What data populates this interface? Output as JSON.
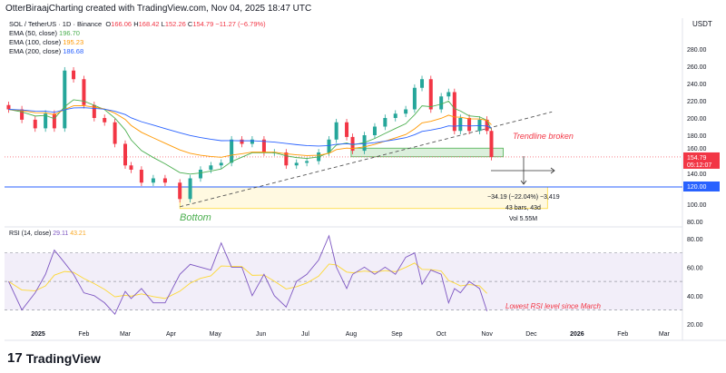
{
  "header": "OtterBiraajCharting created with TradingView.com, Nov 04, 2025 18:47 UTC",
  "symbol": {
    "title": "SOL / TetherUS · 1D · Binance",
    "o_label": "O",
    "open": "166.06",
    "h_label": "H",
    "high": "168.42",
    "l_label": "L",
    "low": "152.26",
    "c_label": "C",
    "close": "154.79",
    "change": "−11.27 (−6.79%)"
  },
  "indicators": [
    {
      "label": "EMA (50, close)",
      "value": "196.70",
      "color": "#4caf50",
      "period": 50
    },
    {
      "label": "EMA (100, close)",
      "value": "195.23",
      "color": "#ff9800",
      "period": 100
    },
    {
      "label": "EMA (200, close)",
      "value": "186.68",
      "color": "#2962ff",
      "period": 200
    }
  ],
  "rsi": {
    "label": "RSI (14, close)",
    "value": "29.11",
    "ma_value": "43.21",
    "color": "#7e57c2",
    "ma_color": "#fdd835"
  },
  "currency": "USDT",
  "price_badge": {
    "price": "154.79",
    "countdown": "05:12:07"
  },
  "level_badge": "120.00",
  "annotations": {
    "trendline": "Trendline broken",
    "bottom": "Bottom",
    "rsi_note": "Lowest RSI level since March",
    "measure_line1": "−34.19 (−22.04%) −3,419",
    "measure_line2": "43 bars, 43d",
    "measure_line3": "Vol 5.55M"
  },
  "brand": "TradingView",
  "colors": {
    "up": "#26a69a",
    "down": "#f23645"
  },
  "chart_data": {
    "type": "candlestick",
    "price_ticks": [
      "280.00",
      "260.00",
      "240.00",
      "220.00",
      "200.00",
      "180.00",
      "160.00",
      "140.00",
      "100.00",
      "80.00"
    ],
    "price_tick_values": [
      280,
      260,
      240,
      220,
      200,
      180,
      160,
      140,
      100,
      80
    ],
    "ylim": [
      80,
      290
    ],
    "rsi_ticks": [
      "80.00",
      "60.00",
      "40.00",
      "20.00"
    ],
    "rsi_tick_values": [
      80,
      60,
      40,
      20
    ],
    "rsi_levels": [
      70,
      50,
      30
    ],
    "x_ticks": [
      [
        "2025",
        "2025-01-01"
      ],
      [
        "Feb",
        "2025-02-01"
      ],
      [
        "Mar",
        "2025-03-01"
      ],
      [
        "Apr",
        "2025-04-01"
      ],
      [
        "May",
        "2025-05-01"
      ],
      [
        "Jun",
        "2025-06-01"
      ],
      [
        "Jul",
        "2025-07-01"
      ],
      [
        "Aug",
        "2025-08-01"
      ],
      [
        "Sep",
        "2025-09-01"
      ],
      [
        "Oct",
        "2025-10-01"
      ],
      [
        "Nov",
        "2025-11-01"
      ],
      [
        "Dec",
        "2025-12-01"
      ],
      [
        "2026",
        "2026-01-01"
      ],
      [
        "Feb",
        "2026-02-01"
      ],
      [
        "Mar",
        "2026-03-01"
      ]
    ],
    "closes": [
      [
        "2024-12-12",
        210
      ],
      [
        "2024-12-21",
        198
      ],
      [
        "2024-12-30",
        188
      ],
      [
        "2025-01-06",
        205
      ],
      [
        "2025-01-12",
        188
      ],
      [
        "2025-01-19",
        255
      ],
      [
        "2025-01-25",
        245
      ],
      [
        "2025-02-01",
        215
      ],
      [
        "2025-02-08",
        200
      ],
      [
        "2025-02-15",
        195
      ],
      [
        "2025-02-22",
        170
      ],
      [
        "2025-03-01",
        145
      ],
      [
        "2025-03-05",
        140
      ],
      [
        "2025-03-12",
        125
      ],
      [
        "2025-03-20",
        130
      ],
      [
        "2025-03-28",
        125
      ],
      [
        "2025-04-07",
        106
      ],
      [
        "2025-04-14",
        130
      ],
      [
        "2025-04-21",
        140
      ],
      [
        "2025-04-28",
        145
      ],
      [
        "2025-05-05",
        148
      ],
      [
        "2025-05-12",
        175
      ],
      [
        "2025-05-19",
        170
      ],
      [
        "2025-05-26",
        175
      ],
      [
        "2025-06-03",
        160
      ],
      [
        "2025-06-10",
        160
      ],
      [
        "2025-06-18",
        145
      ],
      [
        "2025-06-25",
        148
      ],
      [
        "2025-07-02",
        150
      ],
      [
        "2025-07-10",
        160
      ],
      [
        "2025-07-17",
        175
      ],
      [
        "2025-07-22",
        195
      ],
      [
        "2025-07-29",
        178
      ],
      [
        "2025-08-02",
        162
      ],
      [
        "2025-08-10",
        180
      ],
      [
        "2025-08-17",
        190
      ],
      [
        "2025-08-24",
        200
      ],
      [
        "2025-08-31",
        205
      ],
      [
        "2025-09-07",
        210
      ],
      [
        "2025-09-13",
        235
      ],
      [
        "2025-09-18",
        245
      ],
      [
        "2025-09-24",
        210
      ],
      [
        "2025-10-01",
        225
      ],
      [
        "2025-10-06",
        230
      ],
      [
        "2025-10-10",
        185
      ],
      [
        "2025-10-14",
        200
      ],
      [
        "2025-10-20",
        185
      ],
      [
        "2025-10-27",
        198
      ],
      [
        "2025-11-01",
        185
      ],
      [
        "2025-11-04",
        154.79
      ]
    ],
    "rsi_values": [
      50,
      30,
      42,
      55,
      72,
      63,
      55,
      42,
      40,
      35,
      27,
      43,
      38,
      45,
      35,
      35,
      55,
      62,
      60,
      58,
      77,
      60,
      60,
      40,
      55,
      40,
      32,
      50,
      55,
      65,
      82,
      60,
      45,
      55,
      60,
      55,
      60,
      55,
      67,
      70,
      48,
      58,
      55,
      35,
      45,
      42,
      50,
      45,
      29.11
    ],
    "horizontal_level": 120,
    "zones": [
      {
        "from": "2025-08-01",
        "to": "2025-11-12",
        "low": 155,
        "high": 165,
        "color": "#4caf50"
      },
      {
        "from": "2025-04-07",
        "to": "2025-12-12",
        "low": 95,
        "high": 120,
        "color": "#fdd835"
      }
    ],
    "trendline": {
      "from": [
        "2025-04-07",
        97
      ],
      "to": [
        "2025-12-15",
        207
      ]
    }
  }
}
